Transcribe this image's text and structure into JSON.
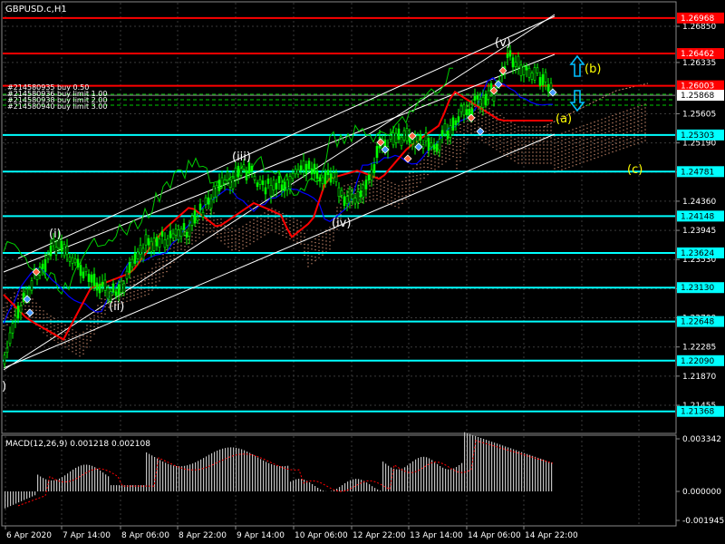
{
  "window": {
    "title": "GBPUSD.c,H1"
  },
  "orders": [
    "#214580935 buy 0.50",
    "#214580936 buy limit 1.00",
    "#214580938 buy limit 2.00",
    "#214580940 buy limit 3.00"
  ],
  "price_axis": {
    "ticks": [
      "1.26850",
      "1.26335",
      "1.25605",
      "1.25190",
      "1.24775",
      "1.24360",
      "1.23945",
      "1.23530",
      "1.23115",
      "1.22700",
      "1.22285",
      "1.21870",
      "1.21455"
    ],
    "levels": [
      {
        "label": "1.26968",
        "color": "#ff0000",
        "kind": "resistance"
      },
      {
        "label": "1.26462",
        "color": "#ff0000",
        "kind": "resistance"
      },
      {
        "label": "1.26003",
        "color": "#ff0000",
        "kind": "resistance"
      },
      {
        "label": "1.25868",
        "color": "#ffffff",
        "kind": "current-price"
      },
      {
        "label": "1.25303",
        "color": "#00ffff",
        "kind": "support"
      },
      {
        "label": "1.24781",
        "color": "#00ffff",
        "kind": "support"
      },
      {
        "label": "1.24148",
        "color": "#00ffff",
        "kind": "support"
      },
      {
        "label": "1.23624",
        "color": "#00ffff",
        "kind": "support"
      },
      {
        "label": "1.23130",
        "color": "#00ffff",
        "kind": "support"
      },
      {
        "label": "1.22648",
        "color": "#00ffff",
        "kind": "support"
      },
      {
        "label": "1.22090",
        "color": "#00ffff",
        "kind": "support"
      },
      {
        "label": "1.21368",
        "color": "#00ffff",
        "kind": "support"
      }
    ]
  },
  "wave_labels": [
    {
      "text": "(i)",
      "color": "#ffffff"
    },
    {
      "text": "(ii)",
      "color": "#ffffff"
    },
    {
      "text": "(iii)",
      "color": "#ffffff"
    },
    {
      "text": "(iv)",
      "color": "#ffffff"
    },
    {
      "text": "(v)",
      "color": "#ffffff"
    },
    {
      "text": "(a)",
      "color": "#ffff00"
    },
    {
      "text": "(b)",
      "color": "#ffff00"
    },
    {
      "text": "(c)",
      "color": "#ffff00"
    },
    {
      "text": ")",
      "color": "#ffffff"
    }
  ],
  "icons": {
    "up": "up-arrow-icon",
    "down": "down-arrow-icon"
  },
  "macd": {
    "label": "MACD(12,26,9) 0.001218 0.002108",
    "ticks": [
      "0.003342",
      "0.000000",
      "-0.001945"
    ]
  },
  "time_axis": {
    "labels": [
      "6 Apr 2020",
      "7 Apr 14:00",
      "8 Apr 06:00",
      "8 Apr 22:00",
      "9 Apr 14:00",
      "10 Apr 06:00",
      "12 Apr 22:00",
      "13 Apr 14:00",
      "14 Apr 06:00",
      "14 Apr 22:00"
    ]
  },
  "colors": {
    "background": "#000000",
    "grid": "#3a3a3a",
    "candle": "#00ff00",
    "resistance": "#ff0000",
    "support": "#00ffff",
    "ma_red": "#ff0000",
    "ma_blue": "#0000ff",
    "chikou": "#00cc00",
    "cloud": "#c8896c",
    "arrow": "#00bfff",
    "macd_bar": "#c0c0c0",
    "macd_signal": "#ff0000"
  }
}
